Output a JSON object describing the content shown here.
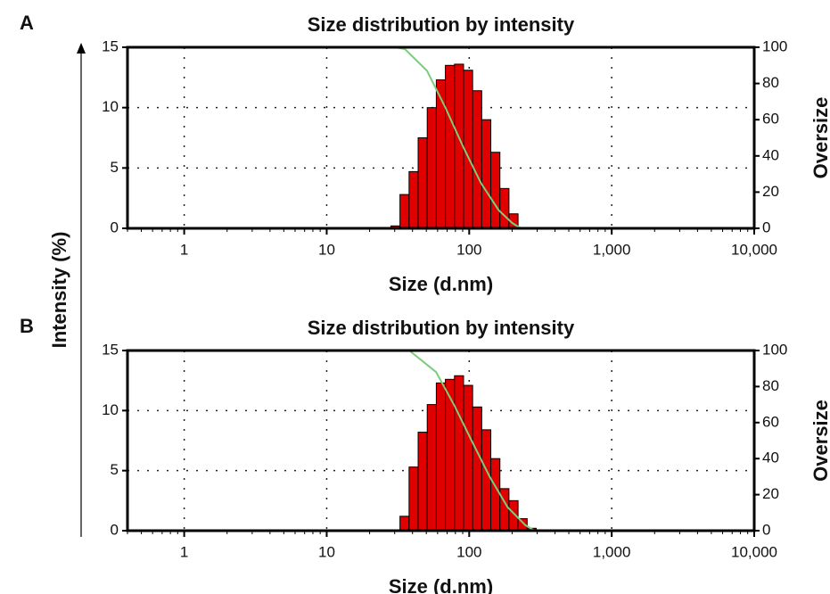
{
  "chart_data": [
    {
      "type": "histogram",
      "panel": "A",
      "title": "Size distribution by intensity",
      "xlabel": "Size (d.nm)",
      "ylabel": "Intensity (%)",
      "y2label": "Oversize",
      "log_x": true,
      "grid": true,
      "color": "#e00000",
      "bins": [
        28.21,
        32.67,
        37.84,
        43.82,
        50.75,
        58.77,
        68.06,
        78.82,
        91.28,
        105.7,
        122.4,
        141.8,
        164.2,
        190.1,
        220.2
      ],
      "values": [
        0.2,
        2.8,
        4.7,
        7.5,
        10.0,
        12.3,
        13.5,
        13.6,
        13.1,
        11.4,
        9.0,
        6.3,
        3.3,
        1.2
      ],
      "series": [
        {
          "color": "#7ccc7c",
          "axis": "y2",
          "x": [
            0.4,
            30,
            35.4,
            50.6,
            67.8,
            90.7,
            121,
            161,
            200,
            230
          ],
          "values": [
            100,
            100,
            99,
            87,
            67,
            45,
            25,
            10,
            3,
            0
          ]
        }
      ],
      "xlim": [
        0.4,
        10000
      ],
      "xticks": [
        1,
        10,
        100,
        {
          "value": 1000,
          "label": "1,000"
        },
        {
          "value": 10000,
          "label": "10,000"
        }
      ],
      "ylim": [
        0,
        15
      ],
      "yticks": [
        0,
        5,
        10,
        15
      ],
      "y2lim": [
        0,
        100
      ],
      "y2ticks": [
        0,
        20,
        40,
        60,
        80,
        100
      ]
    },
    {
      "type": "histogram",
      "panel": "B",
      "title": "Size distribution by intensity",
      "xlabel": "Size (d.nm)",
      "y2label": "Oversize",
      "log_x": true,
      "grid": true,
      "color": "#e00000",
      "bins": [
        32.67,
        37.84,
        43.82,
        50.75,
        58.77,
        68.06,
        78.82,
        91.28,
        105.7,
        122.4,
        141.8,
        164.2,
        190.1,
        220.2,
        255.0,
        295.3
      ],
      "values": [
        1.2,
        5.3,
        8.2,
        10.5,
        12.3,
        12.6,
        12.9,
        12.1,
        10.3,
        8.4,
        6.0,
        3.5,
        2.5,
        1.0,
        0.2
      ],
      "series": [
        {
          "color": "#7ccc7c",
          "axis": "y2",
          "x": [
            0.4,
            38,
            58.6,
            78,
            104,
            139,
            186,
            248,
            287
          ],
          "values": [
            100,
            100,
            88,
            70,
            50,
            30,
            13,
            3,
            0
          ]
        }
      ],
      "xlim": [
        0.4,
        10000
      ],
      "xticks": [
        1,
        10,
        100,
        {
          "value": 1000,
          "label": "1,000"
        },
        {
          "value": 10000,
          "label": "10,000"
        }
      ],
      "ylim": [
        0,
        15
      ],
      "yticks": [
        0,
        5,
        10,
        15
      ],
      "y2lim": [
        0,
        100
      ],
      "y2ticks": [
        0,
        20,
        40,
        60,
        80,
        100
      ]
    }
  ]
}
